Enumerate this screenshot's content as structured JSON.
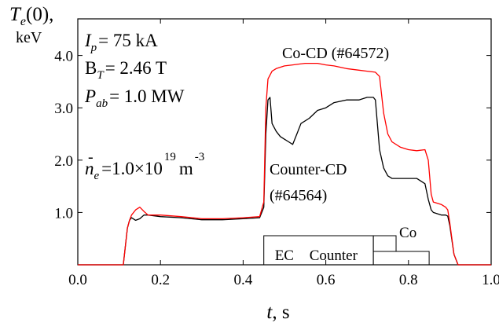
{
  "chart_data": {
    "type": "line",
    "ylabel_symbol": "T",
    "ylabel_sub": "e",
    "ylabel_arg": "(0),",
    "yunit": "keV",
    "xlabel_symbol": "t",
    "xunit": ", s",
    "xlim": [
      0.0,
      1.0
    ],
    "ylim": [
      0.0,
      4.7
    ],
    "xticks": [
      "0.0",
      "0.2",
      "0.4",
      "0.6",
      "0.8",
      "1.0"
    ],
    "xtick_values": [
      0.0,
      0.2,
      0.4,
      0.6,
      0.8,
      1.0
    ],
    "yticks": [
      "1.0",
      "2.0",
      "3.0",
      "4.0"
    ],
    "ytick_values": [
      1.0,
      2.0,
      3.0,
      4.0
    ],
    "params": {
      "ip_sym": "I",
      "ip_sub": "p",
      "ip_val": "= 75 kA",
      "bt_sym": "B",
      "bt_sub": "T",
      "bt_val": "= 2.46 T",
      "pab_sym": "P",
      "pab_sub": "ab",
      "pab_val": "= 1.0 MW",
      "ne_sym": "n",
      "ne_bar": "-",
      "ne_sub": "e",
      "ne_val": "=1.0×10",
      "ne_exp": "19",
      "ne_unit": "m",
      "ne_unit_exp": "-3"
    },
    "annotations": {
      "co_label": "Co-CD (#64572)",
      "counter_label_1": "Counter-CD",
      "counter_label_2": "(#64564)"
    },
    "timing": {
      "ec_label": "EC",
      "counter_label": "Counter",
      "co_label": "Co",
      "ec_box": [
        0.45,
        0.85
      ],
      "counter_box": [
        0.715,
        0.85
      ],
      "co_box": [
        0.715,
        0.77
      ]
    },
    "series": [
      {
        "color": "#ff0000",
        "x": [
          0.0,
          0.11,
          0.115,
          0.12,
          0.125,
          0.13,
          0.14,
          0.15,
          0.16,
          0.17,
          0.2,
          0.25,
          0.3,
          0.35,
          0.4,
          0.44,
          0.45,
          0.455,
          0.46,
          0.47,
          0.48,
          0.5,
          0.52,
          0.55,
          0.58,
          0.6,
          0.62,
          0.65,
          0.68,
          0.7,
          0.72,
          0.73,
          0.74,
          0.75,
          0.76,
          0.78,
          0.8,
          0.82,
          0.84,
          0.848,
          0.855,
          0.86,
          0.88,
          0.89,
          0.895,
          0.9,
          0.91,
          0.92,
          1.0
        ],
        "y": [
          0.0,
          0.0,
          0.35,
          0.7,
          0.85,
          0.95,
          1.05,
          1.1,
          1.02,
          0.95,
          0.95,
          0.92,
          0.88,
          0.88,
          0.9,
          0.92,
          1.2,
          3.0,
          3.55,
          3.7,
          3.75,
          3.8,
          3.82,
          3.85,
          3.85,
          3.82,
          3.8,
          3.75,
          3.72,
          3.7,
          3.68,
          3.6,
          2.9,
          2.5,
          2.35,
          2.25,
          2.2,
          2.18,
          2.2,
          2.0,
          1.35,
          1.2,
          1.15,
          1.1,
          1.05,
          0.8,
          0.2,
          0.0,
          0.0
        ]
      },
      {
        "color": "#000000",
        "x": [
          0.0,
          0.11,
          0.115,
          0.12,
          0.125,
          0.13,
          0.14,
          0.15,
          0.16,
          0.17,
          0.2,
          0.25,
          0.3,
          0.35,
          0.4,
          0.44,
          0.45,
          0.455,
          0.46,
          0.465,
          0.47,
          0.48,
          0.49,
          0.5,
          0.51,
          0.52,
          0.53,
          0.54,
          0.56,
          0.58,
          0.6,
          0.62,
          0.65,
          0.68,
          0.7,
          0.715,
          0.72,
          0.73,
          0.74,
          0.75,
          0.76,
          0.78,
          0.8,
          0.82,
          0.84,
          0.848,
          0.855,
          0.86,
          0.88,
          0.89,
          0.895,
          0.9,
          0.91,
          0.92,
          1.0
        ],
        "y": [
          0.0,
          0.0,
          0.35,
          0.7,
          0.85,
          0.9,
          0.85,
          0.88,
          0.95,
          0.95,
          0.92,
          0.9,
          0.86,
          0.86,
          0.88,
          0.9,
          1.1,
          2.5,
          3.15,
          3.2,
          2.7,
          2.55,
          2.45,
          2.4,
          2.35,
          2.3,
          2.5,
          2.7,
          2.8,
          2.95,
          3.0,
          3.1,
          3.15,
          3.15,
          3.2,
          3.2,
          3.15,
          2.2,
          1.85,
          1.7,
          1.65,
          1.65,
          1.65,
          1.65,
          1.55,
          1.25,
          1.05,
          1.0,
          0.95,
          0.95,
          0.93,
          0.75,
          0.2,
          0.0,
          0.0
        ]
      }
    ]
  }
}
